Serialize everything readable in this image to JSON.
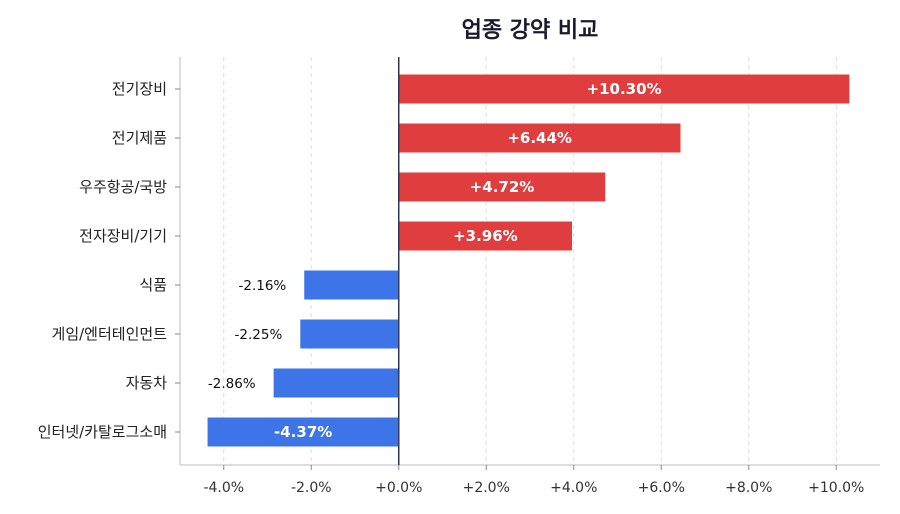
{
  "chart_data": {
    "type": "bar",
    "orientation": "horizontal",
    "title": "업종 강약 비교",
    "xlabel": "",
    "ylabel": "",
    "categories": [
      "전기장비",
      "전기제품",
      "우주항공/국방",
      "전자장비/기기",
      "식품",
      "게임/엔터테인먼트",
      "자동차",
      "인터넷/카탈로그소매"
    ],
    "values": [
      10.3,
      6.44,
      4.72,
      3.96,
      -2.16,
      -2.25,
      -2.86,
      -4.37
    ],
    "value_labels": [
      "+10.30%",
      "+6.44%",
      "+4.72%",
      "+3.96%",
      "-2.16%",
      "-2.25%",
      "-2.86%",
      "-4.37%"
    ],
    "xlim": [
      -5.0,
      11.0
    ],
    "xticks": [
      -4,
      -2,
      0,
      2,
      4,
      6,
      8,
      10
    ],
    "xtick_labels": [
      "-4.0%",
      "-2.0%",
      "+0.0%",
      "+2.0%",
      "+4.0%",
      "+6.0%",
      "+8.0%",
      "+10.0%"
    ],
    "grid": "vertical-dashed",
    "colors": {
      "positive": "#e03e3e",
      "negative": "#3d74e8",
      "zero_line": "#2b3a55",
      "grid": "#dddddd",
      "axis": "#bbbbbb"
    }
  }
}
